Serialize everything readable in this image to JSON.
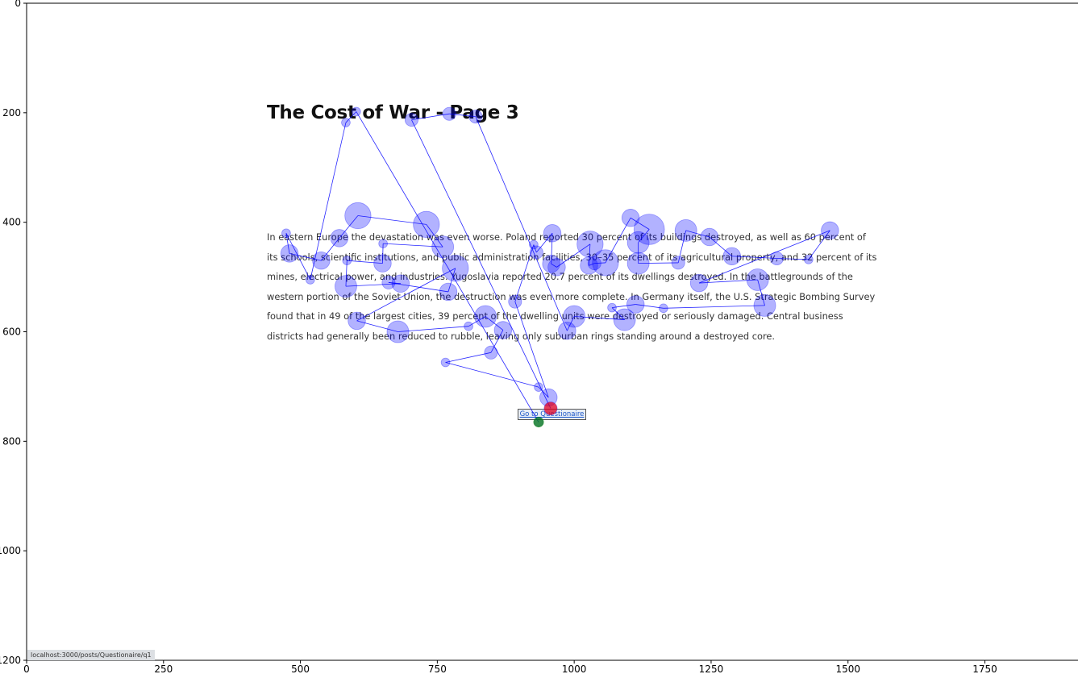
{
  "page": {
    "title": "The Cost of War - Page 3",
    "paragraph_lines": [
      "In eastern Europe the devastation was even worse. Poland reported 30 percent of its buildings destroyed, as well as 60 percent of",
      "its schools, scientific institutions, and public administration facilities, 30–35 percent of its agricultural property, and 32 percent of its",
      "mines, electrical power, and industries. Yugoslavia reported 20.7 percent of its dwellings destroyed. In the battlegrounds of the",
      "western portion of the Soviet Union, the destruction was even more complete. In Germany itself, the U.S. Strategic Bombing Survey",
      "found that in 49 of the largest cities, 39 percent of the dwelling units were destroyed or seriously damaged. Central business",
      "districts had generally been reduced to rubble, leaving only suburban rings standing around a destroyed core."
    ],
    "button_label": "Go to Questionaire",
    "status_url": "localhost:3000/posts/Questionaire/q1"
  },
  "chart_data": {
    "type": "scatter",
    "title": "",
    "xlabel": "",
    "ylabel": "",
    "xlim": [
      0,
      1920
    ],
    "ylim": [
      1200,
      0
    ],
    "y_inverted": true,
    "xticks": [
      0,
      250,
      500,
      750,
      1000,
      1250,
      1500,
      1750
    ],
    "yticks": [
      0,
      200,
      400,
      600,
      800,
      1000,
      1200
    ],
    "grid": false,
    "colors": {
      "fixation": "#0000ff",
      "fixation_alpha": 0.3,
      "path": "#0000ff",
      "start_marker": "#008000",
      "end_marker": "#ff0000"
    },
    "series": [
      {
        "values": [
          {
            "x": 935,
            "y": 765,
            "r": 2
          },
          {
            "x": 602,
            "y": 198,
            "r": 2
          },
          {
            "x": 583,
            "y": 218,
            "r": 2
          },
          {
            "x": 518,
            "y": 505,
            "r": 2
          },
          {
            "x": 474,
            "y": 420,
            "r": 2
          },
          {
            "x": 480,
            "y": 457,
            "r": 4
          },
          {
            "x": 538,
            "y": 470,
            "r": 4
          },
          {
            "x": 571,
            "y": 429,
            "r": 4
          },
          {
            "x": 605,
            "y": 388,
            "r": 6
          },
          {
            "x": 730,
            "y": 404,
            "r": 6
          },
          {
            "x": 760,
            "y": 445,
            "r": 5
          },
          {
            "x": 651,
            "y": 439,
            "r": 2
          },
          {
            "x": 650,
            "y": 475,
            "r": 4
          },
          {
            "x": 585,
            "y": 470,
            "r": 2
          },
          {
            "x": 583,
            "y": 517,
            "r": 5
          },
          {
            "x": 683,
            "y": 512,
            "r": 4
          },
          {
            "x": 661,
            "y": 510,
            "r": 3
          },
          {
            "x": 770,
            "y": 527,
            "r": 4
          },
          {
            "x": 783,
            "y": 484,
            "r": 6
          },
          {
            "x": 603,
            "y": 580,
            "r": 4
          },
          {
            "x": 678,
            "y": 600,
            "r": 5
          },
          {
            "x": 807,
            "y": 590,
            "r": 2
          },
          {
            "x": 838,
            "y": 572,
            "r": 5
          },
          {
            "x": 870,
            "y": 597,
            "r": 4
          },
          {
            "x": 848,
            "y": 638,
            "r": 3
          },
          {
            "x": 765,
            "y": 656,
            "r": 2
          },
          {
            "x": 935,
            "y": 701,
            "r": 2
          },
          {
            "x": 953,
            "y": 720,
            "r": 4
          },
          {
            "x": 892,
            "y": 545,
            "r": 3
          },
          {
            "x": 926,
            "y": 441,
            "r": 2
          },
          {
            "x": 931,
            "y": 455,
            "r": 3
          },
          {
            "x": 960,
            "y": 420,
            "r": 4
          },
          {
            "x": 958,
            "y": 476,
            "r": 4
          },
          {
            "x": 968,
            "y": 482,
            "r": 4
          },
          {
            "x": 1029,
            "y": 440,
            "r": 6
          },
          {
            "x": 1027,
            "y": 479,
            "r": 4
          },
          {
            "x": 1037,
            "y": 475,
            "r": 3
          },
          {
            "x": 1057,
            "y": 474,
            "r": 6
          },
          {
            "x": 1103,
            "y": 392,
            "r": 4
          },
          {
            "x": 1137,
            "y": 413,
            "r": 7
          },
          {
            "x": 1117,
            "y": 437,
            "r": 5
          },
          {
            "x": 1117,
            "y": 475,
            "r": 5
          },
          {
            "x": 1190,
            "y": 474,
            "r": 3
          },
          {
            "x": 1204,
            "y": 415,
            "r": 5
          },
          {
            "x": 1247,
            "y": 427,
            "r": 4
          },
          {
            "x": 1288,
            "y": 462,
            "r": 4
          },
          {
            "x": 1370,
            "y": 466,
            "r": 3
          },
          {
            "x": 1428,
            "y": 468,
            "r": 2
          },
          {
            "x": 1467,
            "y": 415,
            "r": 4
          },
          {
            "x": 1228,
            "y": 511,
            "r": 4
          },
          {
            "x": 1335,
            "y": 505,
            "r": 5
          },
          {
            "x": 1348,
            "y": 552,
            "r": 5
          },
          {
            "x": 1163,
            "y": 557,
            "r": 2
          },
          {
            "x": 1112,
            "y": 550,
            "r": 4
          },
          {
            "x": 1069,
            "y": 556,
            "r": 2
          },
          {
            "x": 1092,
            "y": 578,
            "r": 5
          },
          {
            "x": 1000,
            "y": 572,
            "r": 5
          },
          {
            "x": 987,
            "y": 598,
            "r": 4
          },
          {
            "x": 820,
            "y": 207,
            "r": 3
          },
          {
            "x": 772,
            "y": 202,
            "r": 3
          },
          {
            "x": 703,
            "y": 213,
            "r": 3
          },
          {
            "x": 957,
            "y": 740,
            "r": 3
          }
        ]
      }
    ],
    "start_point": {
      "x": 935,
      "y": 765
    },
    "end_point": {
      "x": 957,
      "y": 740
    }
  }
}
